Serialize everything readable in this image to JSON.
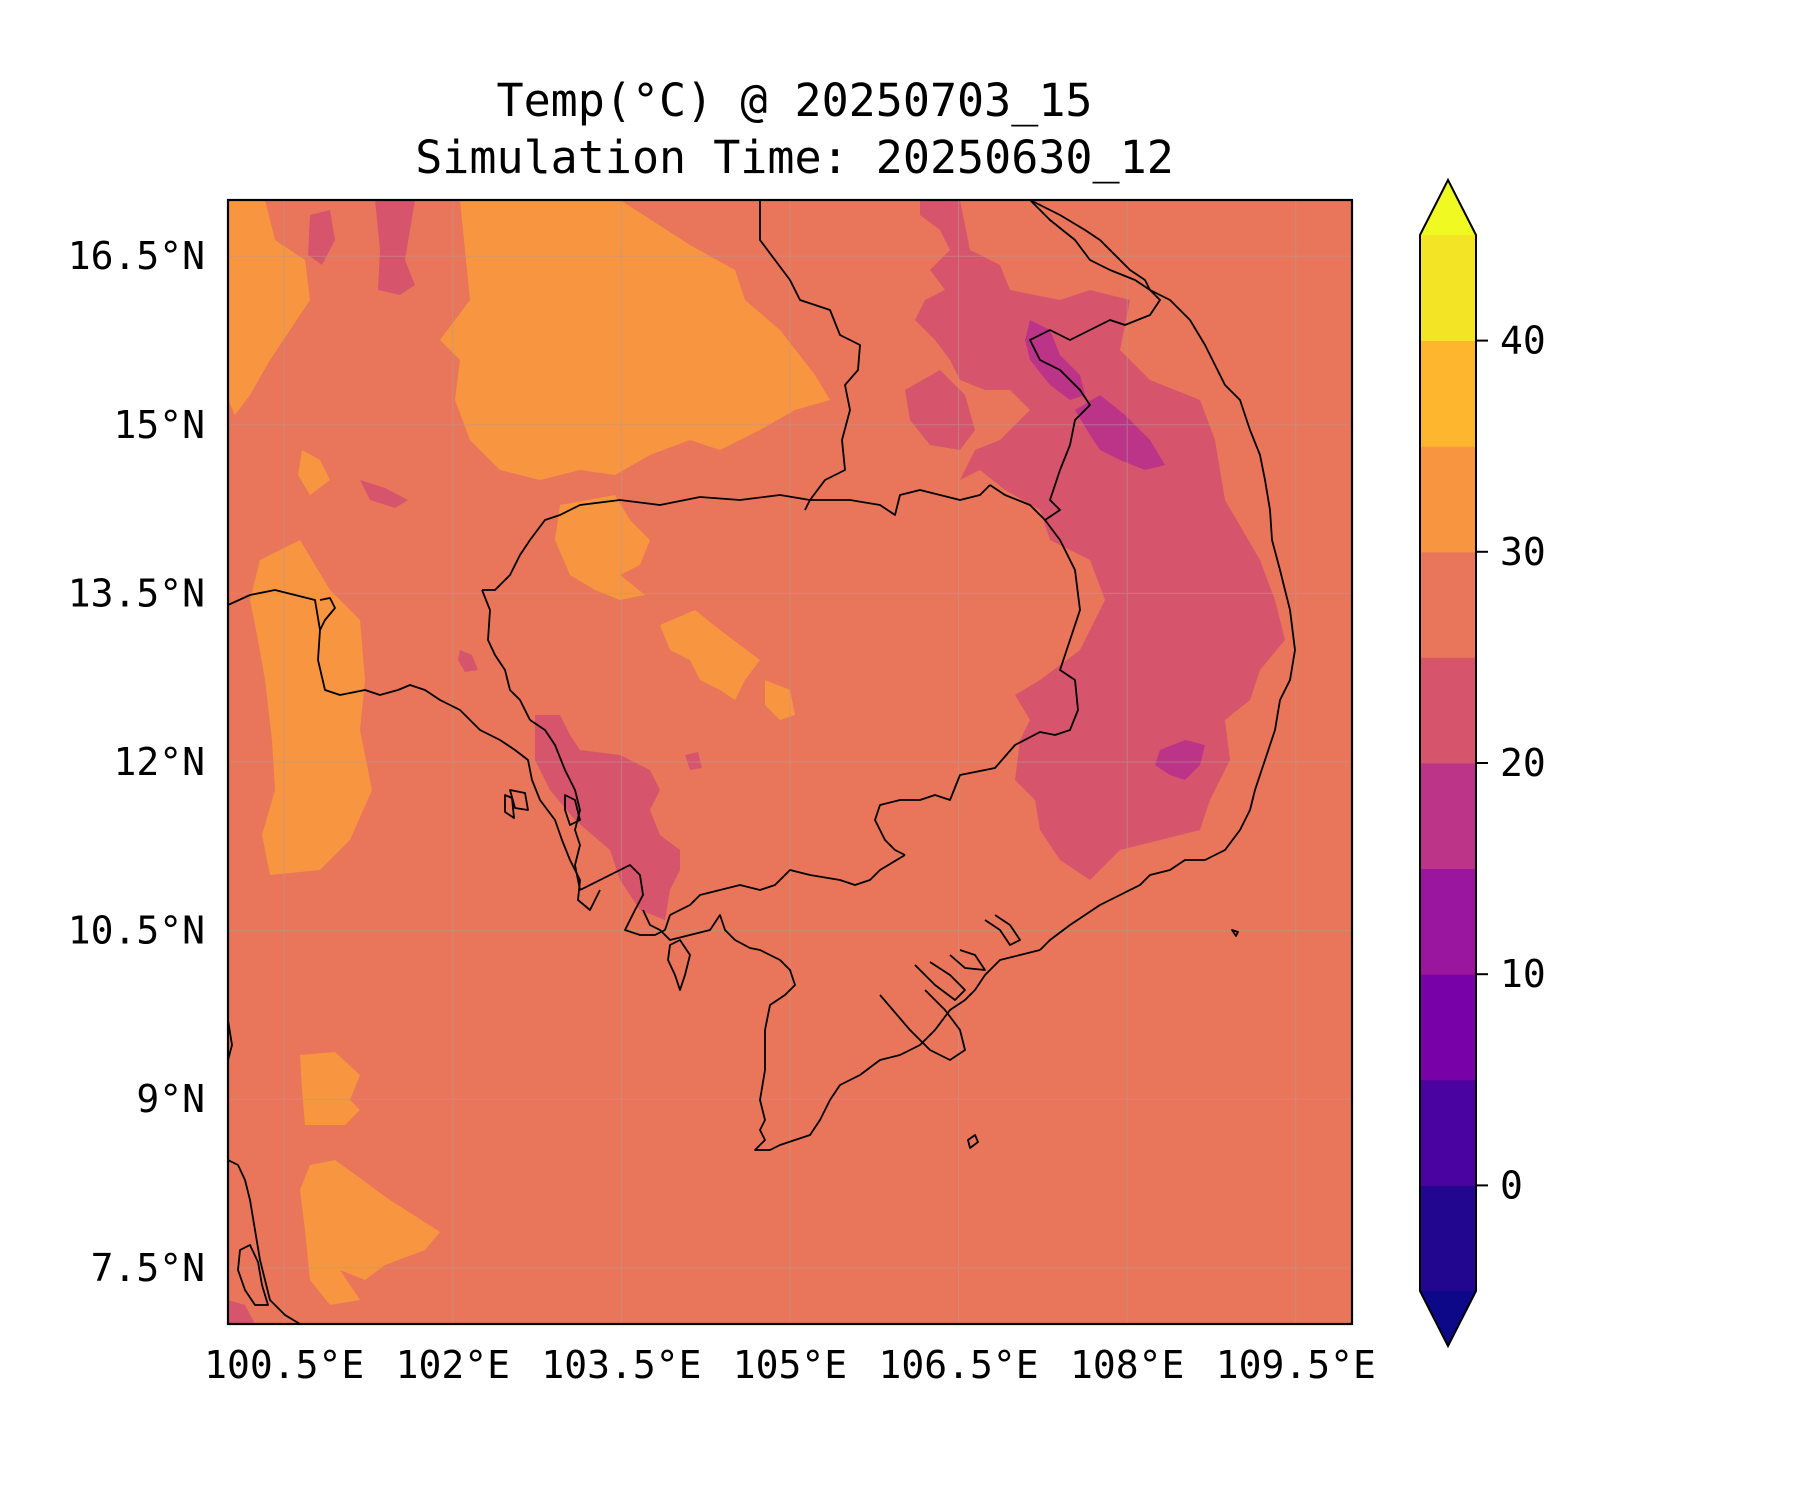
{
  "title": {
    "line1": "Temp(°C) @ 20250703_15",
    "line2": "Simulation Time: 20250630_12"
  },
  "map": {
    "lon_range": [
      100.0,
      110.0
    ],
    "lat_range": [
      7.0,
      17.0
    ],
    "x_ticks": [
      {
        "value": 100.5,
        "label": "100.5°E"
      },
      {
        "value": 102.0,
        "label": "102°E"
      },
      {
        "value": 103.5,
        "label": "103.5°E"
      },
      {
        "value": 105.0,
        "label": "105°E"
      },
      {
        "value": 106.5,
        "label": "106.5°E"
      },
      {
        "value": 108.0,
        "label": "108°E"
      },
      {
        "value": 109.5,
        "label": "109.5°E"
      }
    ],
    "y_ticks": [
      {
        "value": 16.5,
        "label": "16.5°N"
      },
      {
        "value": 15.0,
        "label": "15°N"
      },
      {
        "value": 13.5,
        "label": "13.5°N"
      },
      {
        "value": 12.0,
        "label": "12°N"
      },
      {
        "value": 10.5,
        "label": "10.5°N"
      },
      {
        "value": 9.0,
        "label": "9°N"
      },
      {
        "value": 7.5,
        "label": "7.5°N"
      }
    ],
    "grid": true
  },
  "colorbar": {
    "range": [
      -5,
      45
    ],
    "extend": "both",
    "ticks": [
      {
        "value": 0,
        "label": "0"
      },
      {
        "value": 10,
        "label": "10"
      },
      {
        "value": 20,
        "label": "20"
      },
      {
        "value": 30,
        "label": "30"
      },
      {
        "value": 40,
        "label": "40"
      }
    ],
    "bins": [
      {
        "from": -5,
        "to": 0,
        "color": "#230690"
      },
      {
        "from": 0,
        "to": 5,
        "color": "#4a02a0"
      },
      {
        "from": 5,
        "to": 10,
        "color": "#7801a8"
      },
      {
        "from": 10,
        "to": 15,
        "color": "#9a169f"
      },
      {
        "from": 15,
        "to": 20,
        "color": "#bb3488"
      },
      {
        "from": 20,
        "to": 25,
        "color": "#d6556d"
      },
      {
        "from": 25,
        "to": 30,
        "color": "#e9765a"
      },
      {
        "from": 30,
        "to": 35,
        "color": "#f89540"
      },
      {
        "from": 35,
        "to": 40,
        "color": "#fdb62d"
      },
      {
        "from": 40,
        "to": 45,
        "color": "#f3e525"
      }
    ],
    "under_color": "#0d0887",
    "over_color": "#f0f921"
  }
}
